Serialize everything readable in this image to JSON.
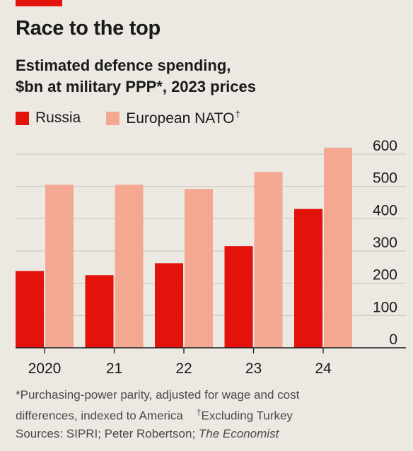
{
  "header": {
    "title": "Race to the top",
    "subtitle_line1": "Estimated defence spending,",
    "subtitle_line2": "$bn at military PPP*, 2023 prices"
  },
  "legend": {
    "russia": "Russia",
    "nato": "European NATO",
    "nato_mark": "†"
  },
  "colors": {
    "russia": "#e3120b",
    "nato": "#f4a892",
    "accent": "#e3120b",
    "grid": "#c9c4bd",
    "axis": "#1a1a1a"
  },
  "footnote": {
    "line1": "*Purchasing-power parity, adjusted for wage and cost",
    "line2a": "differences, indexed to America",
    "line2_mark": "†",
    "line2b": "Excluding Turkey",
    "line3a": "Sources: SIPRI; Peter Robertson; ",
    "line3_italic": "The Economist"
  },
  "chart_data": {
    "type": "bar",
    "categories": [
      "2020",
      "21",
      "22",
      "23",
      "24"
    ],
    "series": [
      {
        "name": "Russia",
        "values": [
          238,
          225,
          262,
          315,
          430
        ]
      },
      {
        "name": "European NATO",
        "values": [
          505,
          505,
          492,
          545,
          620
        ]
      }
    ],
    "yticks": [
      0,
      100,
      200,
      300,
      400,
      500,
      600
    ],
    "ylim": [
      0,
      600
    ],
    "grid": true,
    "y_axis_side": "right",
    "legend_position": "top-left"
  }
}
